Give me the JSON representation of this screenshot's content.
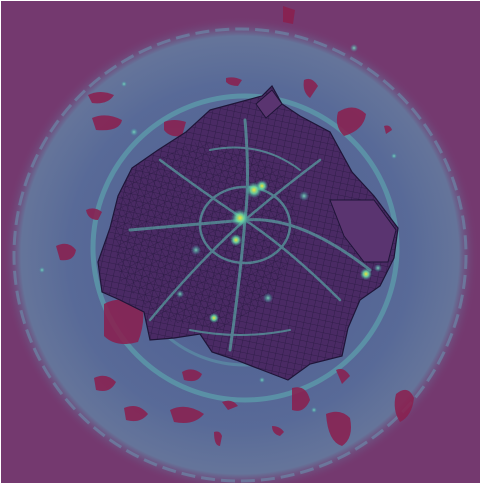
{
  "map": {
    "colors": {
      "background": "#74396f",
      "halo": "#4f6b96",
      "halo_edge": "#5c83a3",
      "ring_glow": "#5fb1b2",
      "district_fill": "#4a2a64",
      "street_line": "#1f1538",
      "blob": "#8b1e4e",
      "hotspot": "#f2e33a",
      "hotspot_mid": "#6ee2a6"
    }
  }
}
